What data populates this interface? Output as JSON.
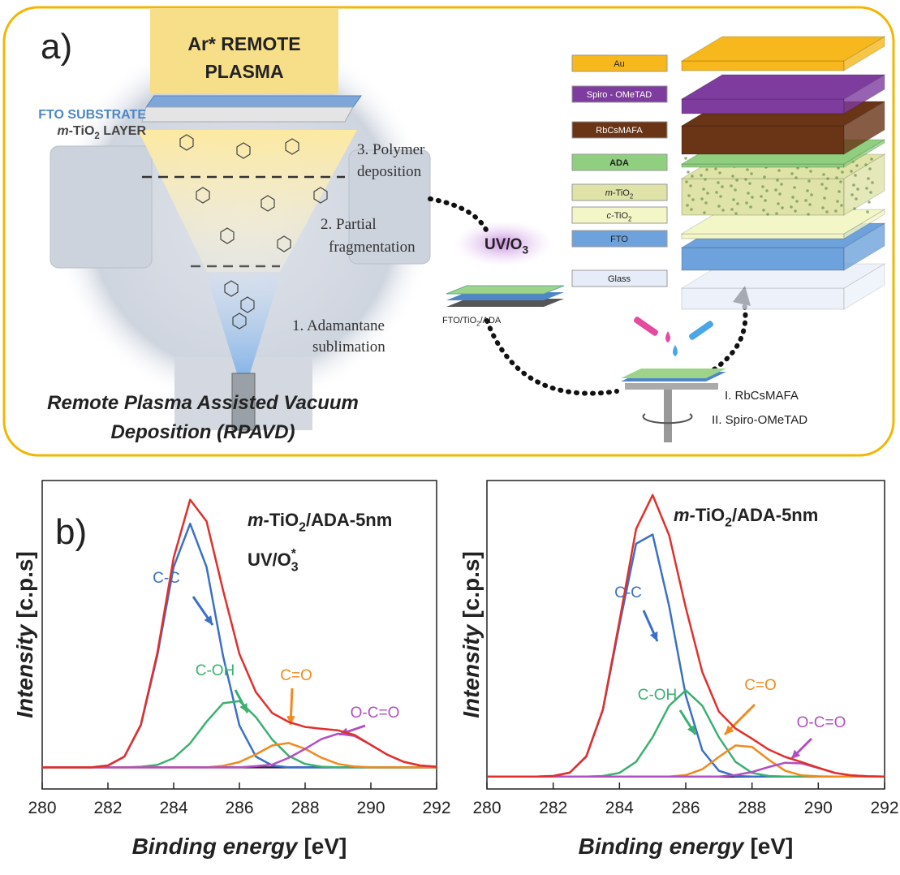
{
  "panel_a": {
    "label": "a)",
    "plasma": [
      "Ar* REMOTE",
      "PLASMA"
    ],
    "substrate": "FTO SUBSTRATE",
    "layer": {
      "prefix": "m-",
      "text": "TiO",
      "sub": "2",
      "suffix": " LAYER"
    },
    "steps": [
      [
        "3. Polymer",
        "deposition"
      ],
      [
        "2. Partial",
        "fragmentation"
      ],
      [
        "1.  Adamantane",
        "sublimation"
      ]
    ],
    "caption": [
      "Remote Plasma Assisted Vacuum",
      "Deposition (RPAVD)"
    ],
    "treatment": {
      "text": "UV/O",
      "sub": "3"
    },
    "sample": {
      "text": "FTO/TiO",
      "sub": "2",
      "suffix": "/ADA"
    },
    "spin_steps": [
      "I. RbCsMAFA",
      "II. Spiro-OMeTAD"
    ],
    "stack": [
      {
        "label": "Au",
        "color": "#f6b81c"
      },
      {
        "label": "Spiro - OMeTAD",
        "color": "#7d3c9e"
      },
      {
        "label": "RbCsMAFA",
        "color": "#6a3417"
      },
      {
        "label": "ADA",
        "color": "#8fcf7f"
      },
      {
        "label": {
          "prefix": "m-",
          "text": "TiO",
          "sub": "2"
        },
        "color": "#dfe3a8"
      },
      {
        "label": {
          "prefix": "c-",
          "text": "TiO",
          "sub": "2"
        },
        "color": "#f3f6c6"
      },
      {
        "label": "FTO",
        "color": "#6ea2dc"
      },
      {
        "label": "Glass",
        "color": "#e6edf8"
      }
    ]
  },
  "panel_b_label": "b)",
  "chart_data": [
    {
      "type": "line",
      "annotations": [
        {
          "prefix": "m-",
          "text": "TiO",
          "sub": "2",
          "suffix": "/ADA-5nm"
        },
        {
          "text": "UV/O",
          "sub": "3",
          "sup": "*"
        }
      ],
      "xlabel": {
        "prefix": "Binding energy",
        "text": "[eV]"
      },
      "ylabel": {
        "prefix": "Intensity",
        "text": "[c.p.s]"
      },
      "xlim": [
        280,
        292
      ],
      "xticks": [
        280,
        282,
        284,
        286,
        288,
        290,
        292
      ],
      "ylim": [
        0,
        100
      ],
      "x": [
        280,
        280.5,
        281,
        281.5,
        282,
        282.5,
        283,
        283.5,
        284,
        284.5,
        285,
        285.5,
        286,
        286.5,
        287,
        287.5,
        288,
        288.5,
        289,
        289.5,
        290,
        290.5,
        291,
        291.5,
        292
      ],
      "series": [
        {
          "color": "#3b1f4f",
          "values": [
            7,
            7,
            7,
            7,
            7,
            7,
            7,
            7,
            7,
            7,
            7,
            7,
            7,
            7,
            7,
            7,
            7,
            7,
            7,
            7,
            7,
            7,
            7,
            7,
            7
          ]
        },
        {
          "name": "C-C",
          "color": "#3a70c6",
          "values": [
            7,
            7,
            7,
            7,
            7.6,
            10.5,
            20.6,
            43.2,
            72,
            86,
            72,
            43.2,
            20.6,
            10.5,
            7.6,
            7,
            7,
            7,
            7,
            7,
            7,
            7,
            7,
            7,
            7
          ]
        },
        {
          "name": "C-OH",
          "color": "#3bb070",
          "values": [
            7,
            7,
            7,
            7,
            7,
            7,
            7.2,
            7.8,
            10,
            14.8,
            21.8,
            27.8,
            28.5,
            23.3,
            16,
            10.7,
            8.1,
            7.2,
            7,
            7,
            7,
            7,
            7,
            7,
            7
          ]
        },
        {
          "name": "C=O",
          "color": "#f08a1e",
          "values": [
            7,
            7,
            7,
            7,
            7,
            7,
            7,
            7,
            7,
            7,
            7,
            7.5,
            8.7,
            11.2,
            14.1,
            14.9,
            13,
            10.1,
            8.1,
            7.3,
            7,
            7,
            7,
            7,
            7
          ]
        },
        {
          "name": "O-C=O",
          "color": "#b24fc2",
          "values": [
            7,
            7,
            7,
            7,
            7,
            7,
            7,
            7,
            7,
            7,
            7,
            7,
            7,
            7.4,
            7.9,
            10.1,
            13,
            16.2,
            17.9,
            17.2,
            14.3,
            11.1,
            8.8,
            7.6,
            7.2
          ]
        },
        {
          "color": "#e0302c",
          "values": [
            7,
            7,
            7,
            7,
            7.6,
            10.5,
            20.8,
            44,
            75,
            93.8,
            86.8,
            64.5,
            43.8,
            31.4,
            24.6,
            21.7,
            20.1,
            19.5,
            19,
            17.5,
            14.3,
            11.1,
            8.8,
            7.6,
            7.2
          ]
        }
      ]
    },
    {
      "type": "line",
      "annotations": [
        {
          "prefix": "m-",
          "text": "TiO",
          "sub": "2",
          "suffix": "/ADA-5nm"
        }
      ],
      "xlabel": {
        "prefix": "Binding energy",
        "text": "[eV]"
      },
      "ylabel": {
        "prefix": "Intensity",
        "text": "[c.p.s]"
      },
      "xlim": [
        280,
        292
      ],
      "xticks": [
        280,
        282,
        284,
        286,
        288,
        290,
        292
      ],
      "ylim": [
        0,
        100
      ],
      "x": [
        280,
        280.5,
        281,
        281.5,
        282,
        282.5,
        283,
        283.5,
        284,
        284.5,
        285,
        285.5,
        286,
        286.5,
        287,
        287.5,
        288,
        288.5,
        289,
        289.5,
        290,
        290.5,
        291,
        291.5,
        292
      ],
      "series": [
        {
          "color": "#3b1f4f",
          "values": [
            4,
            4,
            4,
            4,
            4,
            4,
            4,
            4,
            4,
            4,
            4,
            4,
            4,
            4,
            4,
            4,
            4,
            4,
            4,
            4,
            4,
            4,
            4,
            4,
            4
          ]
        },
        {
          "name": "C-C",
          "color": "#3a70c6",
          "values": [
            4,
            4,
            4,
            4,
            4.2,
            5.3,
            10.5,
            25.6,
            53.2,
            79.5,
            82.5,
            59.2,
            30.3,
            12.5,
            5.9,
            4.2,
            4,
            4,
            4,
            4,
            4,
            4,
            4,
            4,
            4
          ]
        },
        {
          "name": "C-OH",
          "color": "#3bb070",
          "values": [
            4,
            4,
            4,
            4,
            4,
            4,
            4,
            4.2,
            5.2,
            8.8,
            16.8,
            27,
            32,
            27,
            16.8,
            8.8,
            5.2,
            4.2,
            4,
            4,
            4,
            4,
            4,
            4,
            4
          ]
        },
        {
          "name": "C=O",
          "color": "#f08a1e",
          "values": [
            4,
            4,
            4,
            4,
            4,
            4,
            4,
            4,
            4,
            4,
            4,
            4,
            4.5,
            6.4,
            10.4,
            14.1,
            13.6,
            9.5,
            5.9,
            4.4,
            4.1,
            4,
            4,
            4,
            4
          ]
        },
        {
          "name": "O-C=O",
          "color": "#b24fc2",
          "values": [
            4,
            4,
            4,
            4,
            4,
            4,
            4,
            4,
            4,
            4,
            4,
            4,
            4,
            4,
            4,
            4.5,
            5.5,
            7.1,
            8.5,
            8.3,
            6.8,
            5.2,
            4.4,
            4.1,
            4
          ]
        },
        {
          "color": "#e0302c",
          "values": [
            4,
            4,
            4,
            4,
            4.2,
            5.3,
            10.6,
            25.8,
            54.4,
            84.3,
            95.3,
            82.2,
            58.8,
            37.9,
            25.1,
            19.6,
            16.3,
            12.8,
            10.4,
            8.7,
            6.9,
            5.2,
            4.4,
            4.1,
            4
          ]
        }
      ]
    }
  ]
}
